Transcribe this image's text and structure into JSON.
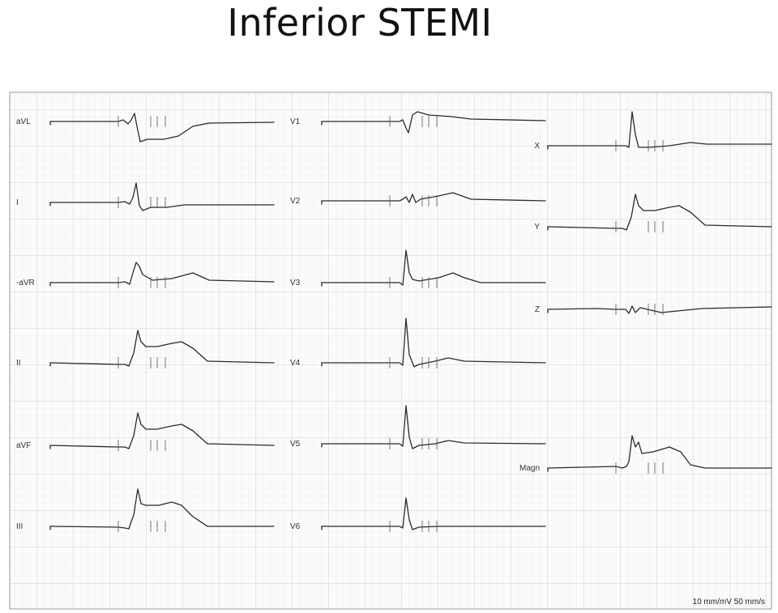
{
  "title": "Inferior STEMI",
  "scale_label": "10 mm/mV 50 mm/s",
  "colors": {
    "trace": "#2a2a2a",
    "grid": "#cfcfcf",
    "paper": "#fbfbfb",
    "border": "#9a9a9a"
  },
  "leads": [
    {
      "id": "aVL",
      "label": "aVL",
      "morph": "avl"
    },
    {
      "id": "I",
      "label": "I",
      "morph": "i"
    },
    {
      "id": "-aVR",
      "label": "-aVR",
      "morph": "navr"
    },
    {
      "id": "II",
      "label": "II",
      "morph": "stemi"
    },
    {
      "id": "aVF",
      "label": "aVF",
      "morph": "stemi"
    },
    {
      "id": "III",
      "label": "III",
      "morph": "stemi3"
    },
    {
      "id": "V1",
      "label": "V1",
      "morph": "v1"
    },
    {
      "id": "V2",
      "label": "V2",
      "morph": "v2"
    },
    {
      "id": "V3",
      "label": "V3",
      "morph": "v3"
    },
    {
      "id": "V4",
      "label": "V4",
      "morph": "v4"
    },
    {
      "id": "V5",
      "label": "V5",
      "morph": "v5"
    },
    {
      "id": "V6",
      "label": "V6",
      "morph": "v6"
    },
    {
      "id": "X",
      "label": "X",
      "morph": "x"
    },
    {
      "id": "Y",
      "label": "Y",
      "morph": "stemi"
    },
    {
      "id": "Z",
      "label": "Z",
      "morph": "z"
    },
    {
      "id": "Magn",
      "label": "Magn",
      "morph": "magn"
    }
  ]
}
